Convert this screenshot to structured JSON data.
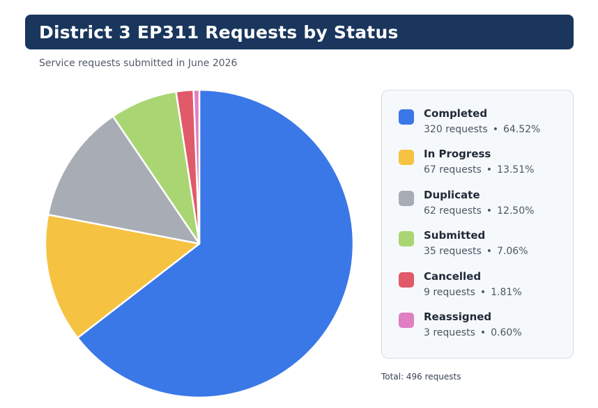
{
  "header": {
    "title": "District 3 EP311 Requests by Status",
    "subtitle": "Service requests submitted in June 2026"
  },
  "chart_data": {
    "type": "pie",
    "title": "District 3 EP311 Requests by Status",
    "subtitle": "Service requests submitted in June 2026",
    "categories": [
      "Completed",
      "In Progress",
      "Duplicate",
      "Submitted",
      "Cancelled",
      "Reassigned"
    ],
    "values": [
      320,
      67,
      62,
      35,
      9,
      3
    ],
    "percentages": [
      "64.52%",
      "13.51%",
      "12.50%",
      "7.06%",
      "1.81%",
      "0.60%"
    ],
    "colors": [
      "#3b78e7",
      "#f5c242",
      "#a8adb5",
      "#a9d672",
      "#e05a6a",
      "#e07fc2"
    ],
    "legend_position": "right",
    "unit": "requests"
  },
  "legend": {
    "items": [
      {
        "label": "Completed",
        "count": "320 requests",
        "pct": "64.52%"
      },
      {
        "label": "In Progress",
        "count": "67 requests",
        "pct": "13.51%"
      },
      {
        "label": "Duplicate",
        "count": "62 requests",
        "pct": "12.50%"
      },
      {
        "label": "Submitted",
        "count": "35 requests",
        "pct": "7.06%"
      },
      {
        "label": "Cancelled",
        "count": "9 requests",
        "pct": "1.81%"
      },
      {
        "label": "Reassigned",
        "count": "3 requests",
        "pct": "0.60%"
      }
    ],
    "separator": "•"
  },
  "footer": {
    "total": "Total: 496 requests"
  }
}
